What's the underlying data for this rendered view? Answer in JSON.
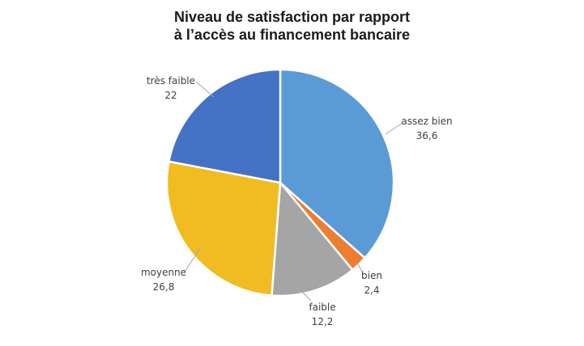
{
  "chart_data": {
    "type": "pie",
    "title": [
      "Niveau de satisfaction par rapport",
      "à l’accès au financement bancaire"
    ],
    "slices": [
      {
        "label": "assez bien",
        "value": 36.6,
        "value_text": "36,6",
        "color": "#5B9BD5"
      },
      {
        "label": "bien",
        "value": 2.4,
        "value_text": "2,4",
        "color": "#ED7D31"
      },
      {
        "label": "faible",
        "value": 12.2,
        "value_text": "12,2",
        "color": "#A5A5A5"
      },
      {
        "label": "moyenne",
        "value": 26.8,
        "value_text": "26,8",
        "color": "#F0BC22"
      },
      {
        "label": "très faible",
        "value": 22,
        "value_text": "22",
        "color": "#4472C4"
      }
    ],
    "legend": "none",
    "data_labels": "outside with leader lines"
  }
}
